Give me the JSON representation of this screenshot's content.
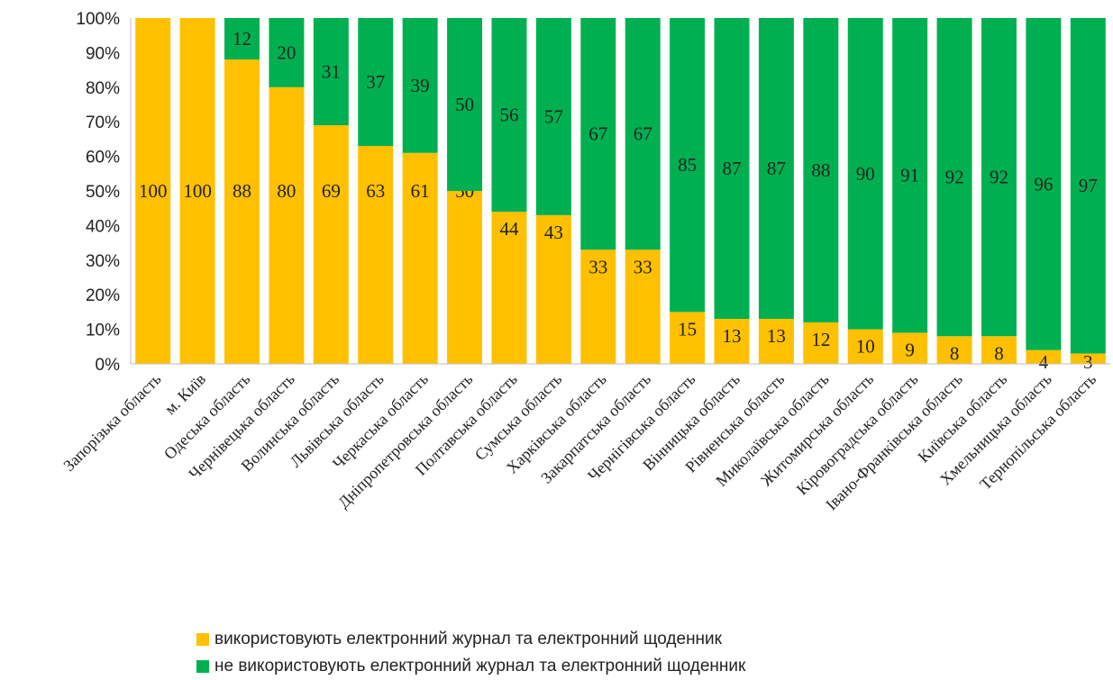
{
  "chart_data": {
    "type": "bar",
    "stacked": true,
    "percent_axis": true,
    "categories": [
      "Запорізька область",
      "м. Київ",
      "Одеська область",
      "Чернівецька область",
      "Волинська область",
      "Львівська область",
      "Черкаська область",
      "Дніпропетровська область",
      "Полтавська область",
      "Сумська область",
      "Харківська область",
      "Закарпатська область",
      "Чернігівська область",
      "Вінницька область",
      "Рівненська область",
      "Миколаївська область",
      "Житомирська область",
      "Кіровоградська область",
      "Івано-Франківська область",
      "Київська область",
      "Хмельницька область",
      "Тернопільська область"
    ],
    "series": [
      {
        "name": "використовують електронний журнал та електронний щоденник",
        "color": "#FFC000",
        "values": [
          100,
          100,
          88,
          80,
          69,
          63,
          61,
          50,
          44,
          43,
          33,
          33,
          15,
          13,
          13,
          12,
          10,
          9,
          8,
          8,
          4,
          3
        ]
      },
      {
        "name": "не використовують електронний журнал та електронний щоденник",
        "color": "#00B050",
        "values": [
          null,
          null,
          12,
          20,
          31,
          37,
          39,
          50,
          56,
          57,
          67,
          67,
          85,
          87,
          87,
          88,
          90,
          91,
          92,
          92,
          96,
          97
        ]
      }
    ],
    "y_ticks": [
      "0%",
      "10%",
      "20%",
      "30%",
      "40%",
      "50%",
      "60%",
      "70%",
      "80%",
      "90%",
      "100%"
    ],
    "ylim": [
      0,
      100
    ],
    "grid": false,
    "legend_position": "bottom"
  }
}
